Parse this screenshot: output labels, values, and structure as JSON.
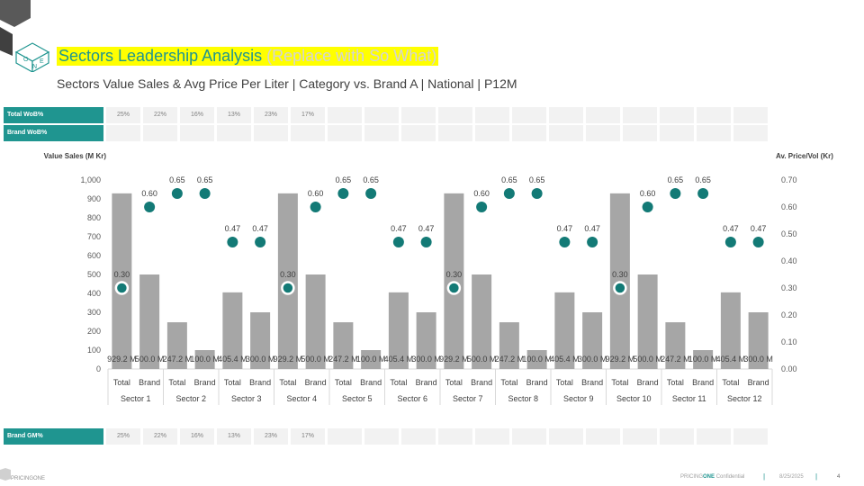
{
  "header": {
    "title": "Sectors Leadership Analysis",
    "title_note": "(Replace with So What)",
    "subtitle": "Sectors Value Sales & Avg Price Per Liter | Category vs. Brand A | National | P12M",
    "logo_letters": [
      "O",
      "N",
      "E"
    ]
  },
  "rows": {
    "total_wob": {
      "label": "Total WoB%",
      "values": [
        "25%",
        "22%",
        "16%",
        "13%",
        "23%",
        "17%",
        "",
        "",
        "",
        "",
        "",
        "",
        "",
        "",
        "",
        "",
        "",
        ""
      ]
    },
    "brand_wob": {
      "label": "Brand WoB%",
      "values": [
        "",
        "",
        "",
        "",
        "",
        "",
        "",
        "",
        "",
        "",
        "",
        "",
        "",
        "",
        "",
        "",
        "",
        ""
      ]
    },
    "brand_gm": {
      "label": "Brand GM%",
      "values": [
        "25%",
        "22%",
        "16%",
        "13%",
        "23%",
        "17%",
        "",
        "",
        "",
        "",
        "",
        "",
        "",
        "",
        "",
        "",
        "",
        ""
      ]
    }
  },
  "chart_data": {
    "type": "bar",
    "y_left_title": "Value Sales (M Kr)",
    "y_right_title": "Av. Price/Vol (Kr)",
    "ylim_left": [
      0,
      1000
    ],
    "ylim_right": [
      0,
      0.7
    ],
    "y_left_ticks": [
      "0",
      "100",
      "200",
      "300",
      "400",
      "500",
      "600",
      "700",
      "800",
      "900",
      "1,000"
    ],
    "y_right_ticks": [
      "0.00",
      "0.10",
      "0.20",
      "0.30",
      "0.40",
      "0.50",
      "0.60",
      "0.70"
    ],
    "groups": [
      "Sector 1",
      "Sector 2",
      "Sector 3",
      "Sector 4",
      "Sector 5",
      "Sector 6",
      "Sector 7",
      "Sector 8",
      "Sector 9",
      "Sector 10",
      "Sector 11",
      "Sector 12"
    ],
    "sub_categories": [
      "Total",
      "Brand"
    ],
    "series": [
      {
        "name": "Value Sales",
        "axis": "left",
        "values": [
          929.2,
          500.0,
          247.2,
          100.0,
          405.4,
          300.0,
          929.2,
          500.0,
          247.2,
          100.0,
          405.4,
          300.0,
          929.2,
          500.0,
          247.2,
          100.0,
          405.4,
          300.0,
          929.2,
          500.0,
          247.2,
          100.0,
          405.4,
          300.0
        ],
        "labels": [
          "929.2 M",
          "500.0 M",
          "247.2 M",
          "100.0 M",
          "405.4 M",
          "300.0 M",
          "929.2 M",
          "500.0 M",
          "247.2 M",
          "100.0 M",
          "405.4 M",
          "300.0 M",
          "929.2 M",
          "500.0 M",
          "247.2 M",
          "100.0 M",
          "405.4 M",
          "300.0 M",
          "929.2 M",
          "500.0 M",
          "247.2 M",
          "100.0 M",
          "405.4 M",
          "300.0 M"
        ]
      },
      {
        "name": "Av. Price/Vol",
        "axis": "right",
        "values": [
          0.3,
          0.6,
          0.65,
          0.65,
          0.47,
          0.47,
          0.3,
          0.6,
          0.65,
          0.65,
          0.47,
          0.47,
          0.3,
          0.6,
          0.65,
          0.65,
          0.47,
          0.47,
          0.3,
          0.6,
          0.65,
          0.65,
          0.47,
          0.47
        ],
        "labels": [
          "0.30",
          "0.60",
          "0.65",
          "0.65",
          "0.47",
          "0.47",
          "0.30",
          "0.60",
          "0.65",
          "0.65",
          "0.47",
          "0.47",
          "0.30",
          "0.60",
          "0.65",
          "0.65",
          "0.47",
          "0.47",
          "0.30",
          "0.60",
          "0.65",
          "0.65",
          "0.47",
          "0.47"
        ]
      }
    ],
    "colors": {
      "bar": "#a6a6a6",
      "dot": "#137a76",
      "accent": "#1f9590"
    }
  },
  "footer": {
    "brand": "PRICINGONE",
    "confidential_prefix": "PRICING",
    "confidential_brand": "ONE",
    "confidential_suffix": "Confidential",
    "date": "8/25/2025",
    "page": "4"
  }
}
